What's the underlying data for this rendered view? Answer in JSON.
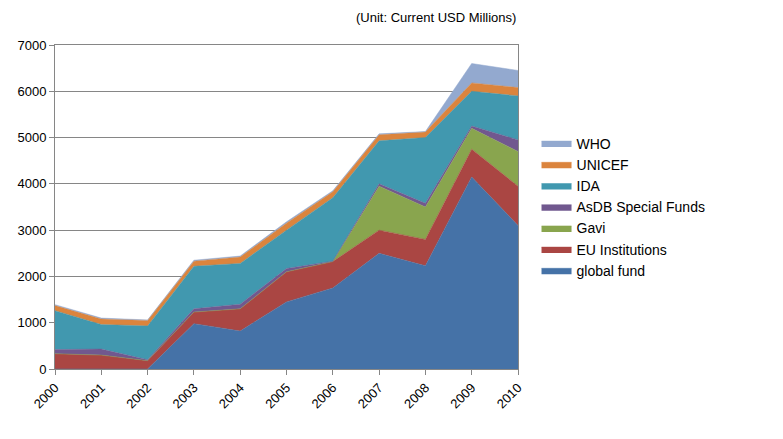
{
  "chart_data": {
    "type": "area",
    "stacked": true,
    "annotations": [
      "(Unit: Current USD Millions)"
    ],
    "categories": [
      "2000",
      "2001",
      "2002",
      "2003",
      "2004",
      "2005",
      "2006",
      "2007",
      "2008",
      "2009",
      "2010"
    ],
    "series": [
      {
        "name": "global fund",
        "color": "#4572a7",
        "values": [
          0,
          0,
          0,
          980,
          820,
          1450,
          1750,
          2500,
          2230,
          4150,
          3100
        ]
      },
      {
        "name": "EU Institutions",
        "color": "#aa4643",
        "values": [
          330,
          300,
          180,
          250,
          480,
          650,
          570,
          500,
          570,
          600,
          850
        ]
      },
      {
        "name": "Gavi",
        "color": "#89a54e",
        "values": [
          0,
          0,
          0,
          0,
          0,
          0,
          0,
          950,
          700,
          450,
          750
        ]
      },
      {
        "name": "AsDB Special Funds",
        "color": "#71588f",
        "values": [
          90,
          130,
          20,
          70,
          100,
          70,
          10,
          50,
          80,
          50,
          250
        ]
      },
      {
        "name": "IDA",
        "color": "#4198af",
        "values": [
          840,
          530,
          730,
          920,
          880,
          830,
          1370,
          930,
          1420,
          750,
          950
        ]
      },
      {
        "name": "UNICEF",
        "color": "#db843d",
        "values": [
          110,
          120,
          120,
          110,
          140,
          150,
          130,
          130,
          120,
          180,
          180
        ]
      },
      {
        "name": "WHO",
        "color": "#93a9cf",
        "values": [
          20,
          20,
          10,
          20,
          20,
          30,
          20,
          20,
          10,
          420,
          370
        ]
      }
    ],
    "ylim": [
      0,
      7000
    ],
    "yticks": [
      0,
      1000,
      2000,
      3000,
      4000,
      5000,
      6000,
      7000
    ],
    "grid": true,
    "legend": "right"
  }
}
